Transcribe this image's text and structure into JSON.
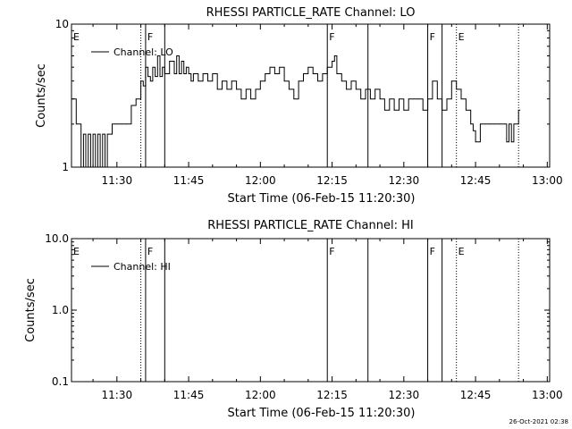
{
  "chart_data": [
    {
      "type": "line",
      "title": "RHESSI PARTICLE_RATE Channel: LO",
      "xlabel": "Start Time (06-Feb-15 11:20:30)",
      "ylabel": "Counts/sec",
      "y_scale": "log",
      "ylim": [
        1,
        10
      ],
      "y_ticks": [
        "1",
        "10"
      ],
      "xlim_minutes": [
        20.5,
        120.5
      ],
      "x_ticks": [
        "11:30",
        "11:45",
        "12:00",
        "12:15",
        "12:30",
        "12:45",
        "13:00"
      ],
      "legend": [
        "Channel: LO"
      ],
      "grid": false,
      "legend_position": "top-left",
      "markers": [
        {
          "letter": "E",
          "time": "11:20:30",
          "style": "none"
        },
        {
          "letter": "F",
          "time": "11:36:00",
          "style": "solid"
        },
        {
          "letter": "F",
          "time": "12:14:00",
          "style": "solid"
        },
        {
          "letter": "F",
          "time": "12:35:00",
          "style": "solid"
        },
        {
          "letter": "E",
          "time": "12:41:00",
          "style": "dotted"
        }
      ],
      "solid_lines": [
        "11:36:00",
        "11:40:00",
        "12:14:00",
        "12:22:30",
        "12:35:00",
        "12:38:00"
      ],
      "dotted_lines": [
        "11:35:00",
        "12:41:00",
        "12:54:00"
      ],
      "series": [
        {
          "name": "Channel: LO",
          "x": [
            "11:20:30",
            "11:21:30",
            "11:22:30",
            "11:23:00",
            "11:23:30",
            "11:24:00",
            "11:24:30",
            "11:25:00",
            "11:25:30",
            "11:26:00",
            "11:26:30",
            "11:27:00",
            "11:27:30",
            "11:28:00",
            "11:28:30",
            "11:29:00",
            "11:30:00",
            "11:31:00",
            "11:32:00",
            "11:33:00",
            "11:34:00",
            "11:35:00",
            "11:35:30",
            "11:36:00",
            "11:36:30",
            "11:37:00",
            "11:37:30",
            "11:38:00",
            "11:38:30",
            "11:39:00",
            "11:39:30",
            "11:40:00",
            "11:41:00",
            "11:42:00",
            "11:42:30",
            "11:43:00",
            "11:43:30",
            "11:44:00",
            "11:44:30",
            "11:45:00",
            "11:45:30",
            "11:46:00",
            "11:47:00",
            "11:48:00",
            "11:49:00",
            "11:50:00",
            "11:51:00",
            "11:52:00",
            "11:53:00",
            "11:54:00",
            "11:55:00",
            "11:56:00",
            "11:57:00",
            "11:58:00",
            "11:59:00",
            "12:00:00",
            "12:01:00",
            "12:02:00",
            "12:03:00",
            "12:04:00",
            "12:05:00",
            "12:06:00",
            "12:07:00",
            "12:08:00",
            "12:09:00",
            "12:10:00",
            "12:11:00",
            "12:12:00",
            "12:13:00",
            "12:14:00",
            "12:15:00",
            "12:15:30",
            "12:16:00",
            "12:17:00",
            "12:18:00",
            "12:19:00",
            "12:20:00",
            "12:21:00",
            "12:22:00",
            "12:23:00",
            "12:24:00",
            "12:25:00",
            "12:26:00",
            "12:27:00",
            "12:28:00",
            "12:29:00",
            "12:30:00",
            "12:31:00",
            "12:32:00",
            "12:33:00",
            "12:34:00",
            "12:35:00",
            "12:36:00",
            "12:37:00",
            "12:38:00",
            "12:39:00",
            "12:40:00",
            "12:41:00",
            "12:42:00",
            "12:43:00",
            "12:44:00",
            "12:44:30",
            "12:45:00",
            "12:46:00",
            "12:47:00",
            "12:48:00",
            "12:49:00",
            "12:50:00",
            "12:51:00",
            "12:51:30",
            "12:52:00",
            "12:52:30",
            "12:53:00",
            "12:54:00"
          ],
          "values": [
            3.0,
            2.0,
            1.0,
            1.7,
            1.0,
            1.7,
            1.0,
            1.7,
            1.0,
            1.7,
            1.0,
            1.7,
            1.0,
            1.7,
            1.7,
            2.0,
            2.0,
            2.0,
            2.0,
            2.7,
            3.0,
            4.0,
            3.7,
            5.0,
            4.3,
            4.0,
            5.0,
            4.3,
            6.0,
            4.3,
            5.0,
            4.5,
            5.5,
            4.5,
            6.0,
            4.5,
            5.5,
            4.5,
            5.0,
            4.5,
            4.0,
            4.5,
            4.0,
            4.5,
            4.0,
            4.5,
            3.5,
            4.0,
            3.5,
            4.0,
            3.5,
            3.0,
            3.5,
            3.0,
            3.5,
            4.0,
            4.5,
            5.0,
            4.5,
            5.0,
            4.0,
            3.5,
            3.0,
            4.0,
            4.5,
            5.0,
            4.5,
            4.0,
            4.5,
            5.0,
            5.5,
            6.0,
            4.5,
            4.0,
            3.5,
            4.0,
            3.5,
            3.0,
            3.5,
            3.0,
            3.5,
            3.0,
            2.5,
            3.0,
            2.5,
            3.0,
            2.5,
            3.0,
            3.0,
            3.0,
            2.5,
            3.0,
            4.0,
            3.0,
            2.5,
            3.0,
            4.0,
            3.5,
            3.0,
            2.5,
            2.0,
            1.8,
            1.5,
            2.0,
            2.0,
            2.0,
            2.0,
            2.0,
            2.0,
            1.5,
            2.0,
            1.5,
            2.0,
            2.5
          ]
        }
      ]
    },
    {
      "type": "line",
      "title": "RHESSI PARTICLE_RATE Channel: HI",
      "xlabel": "Start Time (06-Feb-15 11:20:30)",
      "ylabel": "Counts/sec",
      "y_scale": "log",
      "ylim": [
        0.1,
        10.0
      ],
      "y_ticks": [
        "0.1",
        "1.0",
        "10.0"
      ],
      "xlim_minutes": [
        20.5,
        120.5
      ],
      "x_ticks": [
        "11:30",
        "11:45",
        "12:00",
        "12:15",
        "12:30",
        "12:45",
        "13:00"
      ],
      "legend": [
        "Channel: HI"
      ],
      "grid": false,
      "legend_position": "top-left",
      "markers": [
        {
          "letter": "E",
          "time": "11:20:30",
          "style": "none"
        },
        {
          "letter": "F",
          "time": "11:36:00",
          "style": "solid"
        },
        {
          "letter": "F",
          "time": "12:14:00",
          "style": "solid"
        },
        {
          "letter": "F",
          "time": "12:35:00",
          "style": "solid"
        },
        {
          "letter": "E",
          "time": "12:41:00",
          "style": "dotted"
        }
      ],
      "solid_lines": [
        "11:36:00",
        "11:40:00",
        "12:14:00",
        "12:22:30",
        "12:35:00",
        "12:38:00"
      ],
      "dotted_lines": [
        "11:35:00",
        "12:41:00",
        "12:54:00"
      ],
      "series": [
        {
          "name": "Channel: HI",
          "x": [],
          "values": []
        }
      ]
    }
  ],
  "footer": {
    "date_stamp": "26-Oct-2021 02:38"
  }
}
